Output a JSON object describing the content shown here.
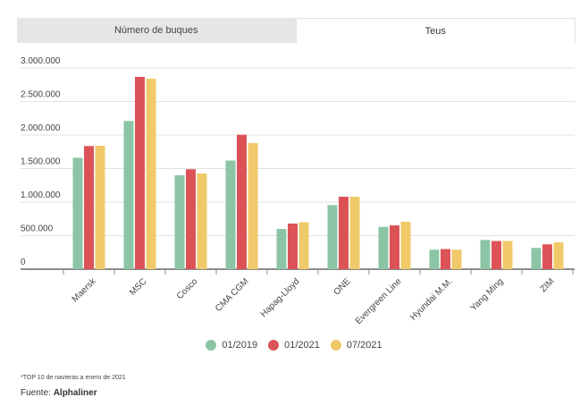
{
  "tabs": [
    {
      "label": "Número de buques",
      "active": false
    },
    {
      "label": "Teus",
      "active": true
    }
  ],
  "chart_data": {
    "type": "bar",
    "title": "",
    "xlabel": "",
    "ylabel": "",
    "categories": [
      "Maersk",
      "MSC",
      "Cosco",
      "CMA CGM",
      "Hapag-Lloyd",
      "ONE",
      "Evergreen Line",
      "Hyundai M.M.",
      "Yang Ming",
      "ZIM"
    ],
    "series": [
      {
        "name": "01/2019",
        "color": "#8cc5a5",
        "values": [
          1660000,
          2210000,
          1400000,
          1620000,
          600000,
          955000,
          630000,
          290000,
          436000,
          316000
        ]
      },
      {
        "name": "01/2021",
        "color": "#dc5357",
        "values": [
          1836000,
          2867000,
          1490000,
          2004000,
          680000,
          1080000,
          653000,
          300000,
          420000,
          370000
        ]
      },
      {
        "name": "07/2021",
        "color": "#f0c96a",
        "values": [
          1840000,
          2840000,
          1427000,
          1880000,
          700000,
          1080000,
          707000,
          290000,
          420000,
          400000
        ]
      }
    ],
    "ylim": [
      0,
      3000000
    ],
    "yticks": [
      0,
      500000,
      1000000,
      1500000,
      2000000,
      2500000,
      3000000
    ],
    "ytick_labels": [
      "0",
      "500.000",
      "1.000.000",
      "1.500.000",
      "2.000.000",
      "2.500.000",
      "3.000.000"
    ],
    "grid": true,
    "legend_position": "bottom"
  },
  "footnote": "*TOP 10 de navieras a enero de 2021",
  "source_label": "Fuente:",
  "source_name": "Alphaliner"
}
